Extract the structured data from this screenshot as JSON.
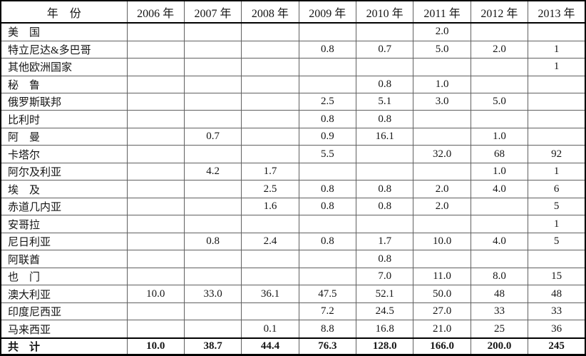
{
  "table": {
    "header": [
      "年　份",
      "2006 年",
      "2007 年",
      "2008 年",
      "2009 年",
      "2010 年",
      "2011 年",
      "2012 年",
      "2013 年"
    ],
    "rows": [
      {
        "label": "美　国",
        "values": [
          "",
          "",
          "",
          "",
          "",
          "2.0",
          "",
          ""
        ]
      },
      {
        "label": "特立尼达&多巴哥",
        "values": [
          "",
          "",
          "",
          "0.8",
          "0.7",
          "5.0",
          "2.0",
          "1"
        ]
      },
      {
        "label": "其他欧洲国家",
        "values": [
          "",
          "",
          "",
          "",
          "",
          "",
          "",
          "1"
        ]
      },
      {
        "label": "秘　鲁",
        "values": [
          "",
          "",
          "",
          "",
          "0.8",
          "1.0",
          "",
          ""
        ]
      },
      {
        "label": "俄罗斯联邦",
        "values": [
          "",
          "",
          "",
          "2.5",
          "5.1",
          "3.0",
          "5.0",
          ""
        ]
      },
      {
        "label": "比利时",
        "values": [
          "",
          "",
          "",
          "0.8",
          "0.8",
          "",
          "",
          ""
        ]
      },
      {
        "label": "阿　曼",
        "values": [
          "",
          "0.7",
          "",
          "0.9",
          "16.1",
          "",
          "1.0",
          ""
        ]
      },
      {
        "label": "卡塔尔",
        "values": [
          "",
          "",
          "",
          "5.5",
          "",
          "32.0",
          "68",
          "92"
        ]
      },
      {
        "label": "阿尔及利亚",
        "values": [
          "",
          "4.2",
          "1.7",
          "",
          "",
          "",
          "1.0",
          "1"
        ]
      },
      {
        "label": "埃　及",
        "values": [
          "",
          "",
          "2.5",
          "0.8",
          "0.8",
          "2.0",
          "4.0",
          "6"
        ]
      },
      {
        "label": "赤道几内亚",
        "values": [
          "",
          "",
          "1.6",
          "0.8",
          "0.8",
          "2.0",
          "",
          "5"
        ]
      },
      {
        "label": "安哥拉",
        "values": [
          "",
          "",
          "",
          "",
          "",
          "",
          "",
          "1"
        ]
      },
      {
        "label": "尼日利亚",
        "values": [
          "",
          "0.8",
          "2.4",
          "0.8",
          "1.7",
          "10.0",
          "4.0",
          "5"
        ]
      },
      {
        "label": "阿联酋",
        "values": [
          "",
          "",
          "",
          "",
          "0.8",
          "",
          "",
          ""
        ]
      },
      {
        "label": "也　门",
        "values": [
          "",
          "",
          "",
          "",
          "7.0",
          "11.0",
          "8.0",
          "15"
        ]
      },
      {
        "label": "澳大利亚",
        "values": [
          "10.0",
          "33.0",
          "36.1",
          "47.5",
          "52.1",
          "50.0",
          "48",
          "48"
        ]
      },
      {
        "label": "印度尼西亚",
        "values": [
          "",
          "",
          "",
          "7.2",
          "24.5",
          "27.0",
          "33",
          "33"
        ]
      },
      {
        "label": "马来西亚",
        "values": [
          "",
          "",
          "0.1",
          "8.8",
          "16.8",
          "21.0",
          "25",
          "36"
        ]
      }
    ],
    "total_row": {
      "label": "共　计",
      "values": [
        "10.0",
        "38.7",
        "44.4",
        "76.3",
        "128.0",
        "166.0",
        "200.0",
        "245"
      ]
    }
  },
  "colors": {
    "outer_border": "#000000",
    "inner_border": "#606060",
    "text": "#151515",
    "background": "#ffffff"
  }
}
